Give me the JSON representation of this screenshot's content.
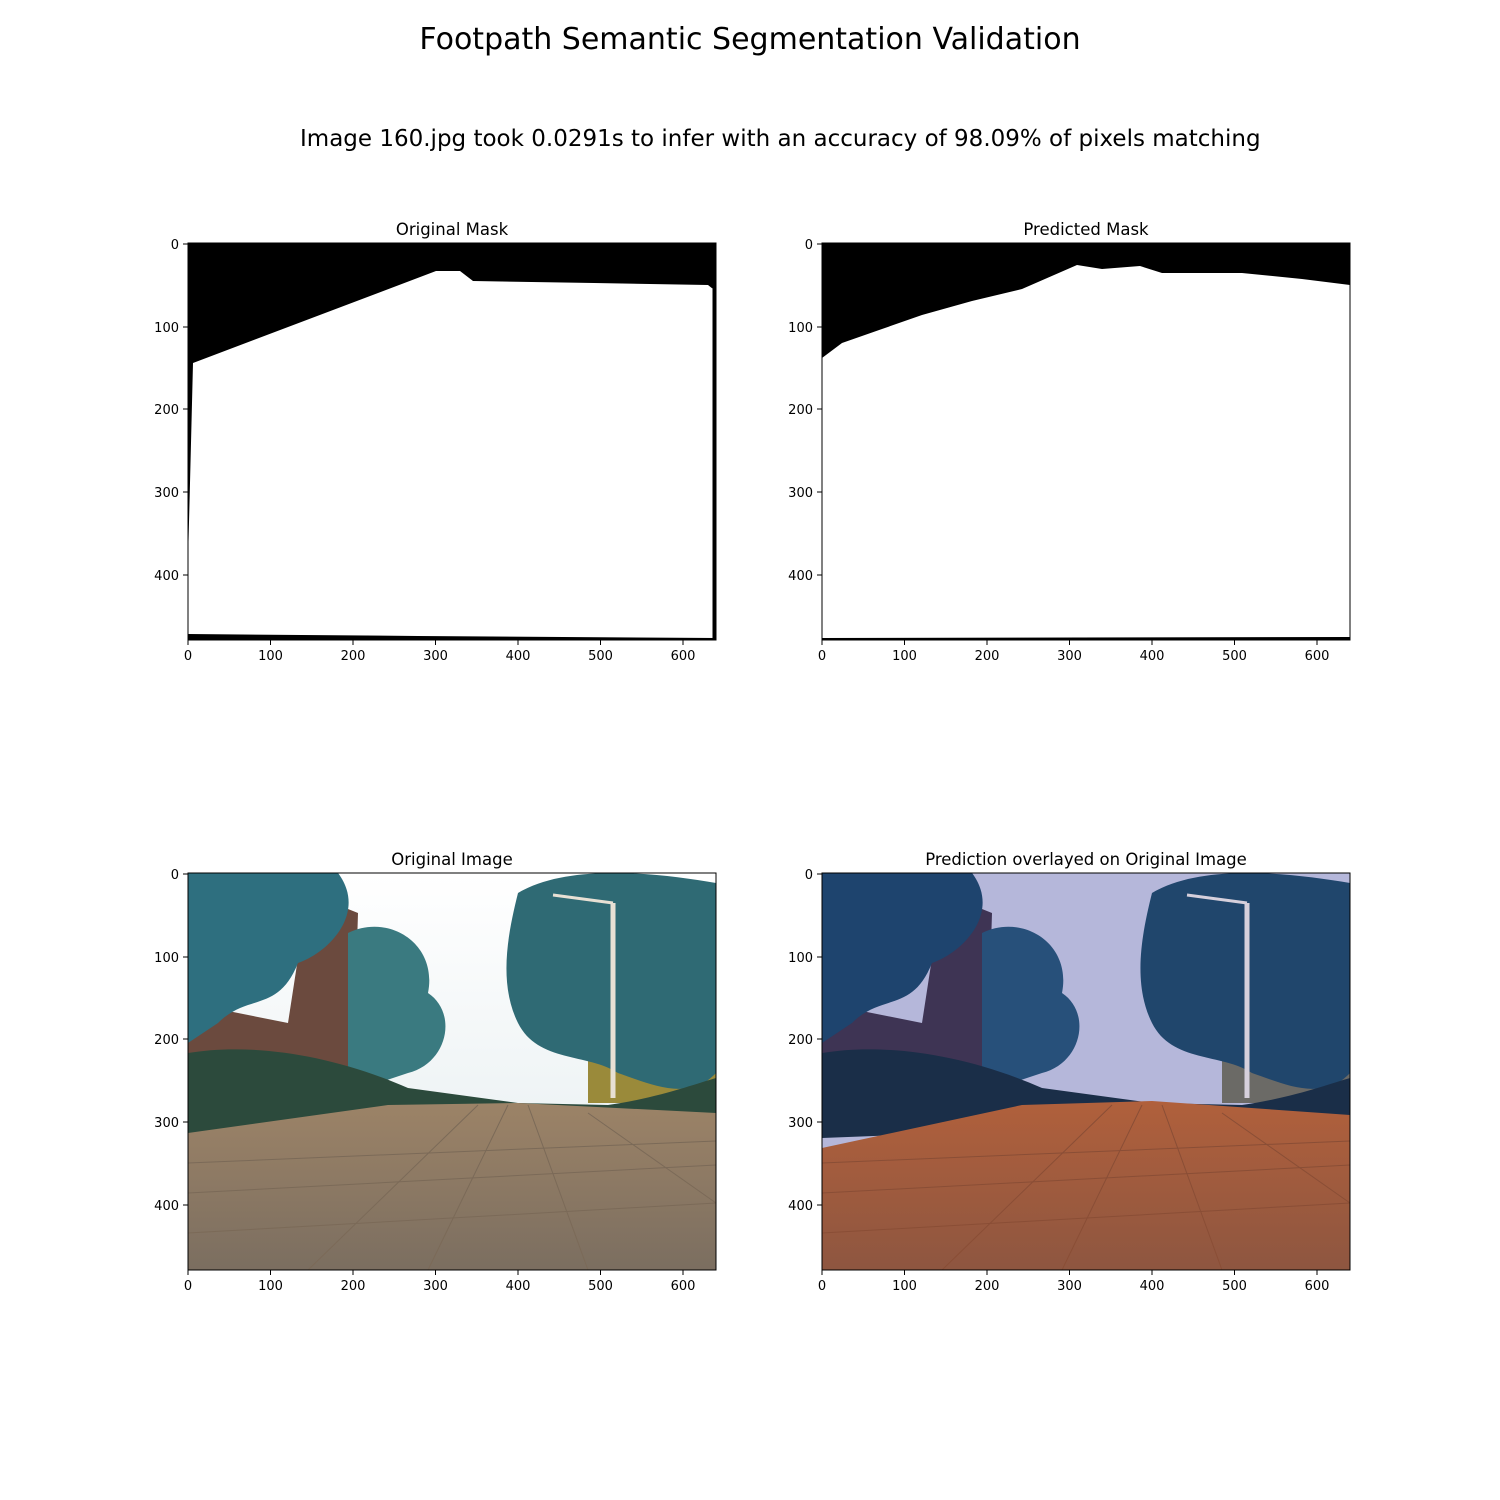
{
  "figure": {
    "title": "Footpath Semantic Segmentation Validation",
    "subtitle": "Image 160.jpg took 0.0291s to infer with an accuracy of 98.09% of pixels matching"
  },
  "panels": [
    {
      "id": "original-mask",
      "title": "Original Mask",
      "type": "binary-mask",
      "xticks": [
        "0",
        "100",
        "200",
        "300",
        "400",
        "500",
        "600"
      ],
      "yticks": [
        "0",
        "100",
        "200",
        "300",
        "400"
      ],
      "xlim": [
        0,
        640
      ],
      "ylim": [
        480,
        0
      ],
      "colors": {
        "background": "#000000",
        "foreground": "#ffffff"
      }
    },
    {
      "id": "predicted-mask",
      "title": "Predicted Mask",
      "type": "binary-mask",
      "xticks": [
        "0",
        "100",
        "200",
        "300",
        "400",
        "500",
        "600"
      ],
      "yticks": [
        "0",
        "100",
        "200",
        "300",
        "400"
      ],
      "xlim": [
        0,
        640
      ],
      "ylim": [
        480,
        0
      ],
      "colors": {
        "background": "#000000",
        "foreground": "#ffffff"
      }
    },
    {
      "id": "original-image",
      "title": "Original Image",
      "type": "photo",
      "xticks": [
        "0",
        "100",
        "200",
        "300",
        "400",
        "500",
        "600"
      ],
      "yticks": [
        "0",
        "100",
        "200",
        "300",
        "400"
      ],
      "xlim": [
        0,
        640
      ],
      "ylim": [
        480,
        0
      ],
      "colors": {
        "sky": "#f4f6f7",
        "trees": "#2f6b78",
        "path": "#8e7a66"
      }
    },
    {
      "id": "overlay-image",
      "title": "Prediction overlayed on Original Image",
      "type": "photo-overlay",
      "xticks": [
        "0",
        "100",
        "200",
        "300",
        "400",
        "500",
        "600"
      ],
      "yticks": [
        "0",
        "100",
        "200",
        "300",
        "400"
      ],
      "xlim": [
        0,
        640
      ],
      "ylim": [
        480,
        0
      ],
      "colors": {
        "sky": "#b4b6d8",
        "trees": "#1c3f66",
        "path": "#a0583a"
      }
    }
  ]
}
